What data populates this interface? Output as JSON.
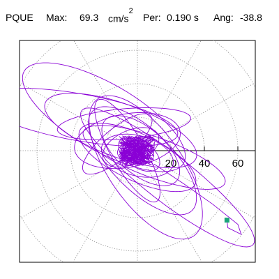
{
  "header": {
    "station": "PQUE",
    "max_label": "Max:",
    "max_value": "69.3",
    "max_unit": "cm/s",
    "max_unit_exp": "2",
    "per_label": "Per:",
    "per_value": "0.190 s",
    "ang_label": "Ang:",
    "ang_value": "-38.8"
  },
  "colors": {
    "trace": "#8a00d6",
    "marker": "#1aa37a",
    "grid": "#888888",
    "axis": "#000000"
  },
  "chart_data": {
    "type": "polar-hodogram",
    "units": "cm/s^2",
    "rings": [
      20,
      40,
      60,
      80
    ],
    "radial_spokes_deg": [
      0,
      30,
      60,
      90,
      120,
      150,
      180,
      210,
      240,
      270,
      300,
      330
    ],
    "tick_labels": [
      "20",
      "40",
      "60"
    ],
    "range": [
      -80,
      80
    ],
    "max_amplitude": 69.3,
    "period_s": 0.19,
    "angle_deg": -38.8,
    "end_point": {
      "x": 53.5,
      "y": -41.5
    },
    "loops": [
      {
        "a": 6,
        "b": 4,
        "rot": -20,
        "cx": -3,
        "cy": 1
      },
      {
        "a": 10,
        "b": 6,
        "rot": 10,
        "cx": -2,
        "cy": 0
      },
      {
        "a": 14,
        "b": 8,
        "rot": -35,
        "cx": 1,
        "cy": -2
      },
      {
        "a": 18,
        "b": 10,
        "rot": 25,
        "cx": -4,
        "cy": 2
      },
      {
        "a": 22,
        "b": 12,
        "rot": -15,
        "cx": 0,
        "cy": -3
      },
      {
        "a": 28,
        "b": 14,
        "rot": -40,
        "cx": 2,
        "cy": 0
      },
      {
        "a": 32,
        "b": 16,
        "rot": 10,
        "cx": -6,
        "cy": 6
      },
      {
        "a": 38,
        "b": 14,
        "rot": -25,
        "cx": 0,
        "cy": -4
      },
      {
        "a": 42,
        "b": 18,
        "rot": -45,
        "cx": 3,
        "cy": -6
      },
      {
        "a": 48,
        "b": 16,
        "rot": -20,
        "cx": -10,
        "cy": 12
      },
      {
        "a": 55,
        "b": 20,
        "rot": -30,
        "cx": -20,
        "cy": 20
      },
      {
        "a": 60,
        "b": 14,
        "rot": -10,
        "cx": -35,
        "cy": 20
      },
      {
        "a": 45,
        "b": 12,
        "rot": -20,
        "cx": 10,
        "cy": -4
      },
      {
        "a": 50,
        "b": 22,
        "rot": -55,
        "cx": 5,
        "cy": -10
      },
      {
        "a": 65,
        "b": 14,
        "rot": -38,
        "cx": 18,
        "cy": -16
      },
      {
        "a": 40,
        "b": 9,
        "rot": 5,
        "cx": -8,
        "cy": 16
      },
      {
        "a": 35,
        "b": 10,
        "rot": -60,
        "cx": -6,
        "cy": 0
      },
      {
        "a": 26,
        "b": 9,
        "rot": 40,
        "cx": -12,
        "cy": 4
      }
    ]
  }
}
